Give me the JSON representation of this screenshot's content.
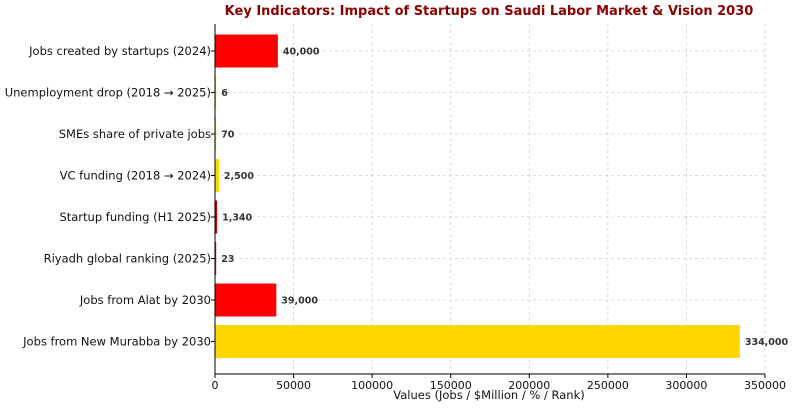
{
  "chart_data": {
    "type": "bar",
    "orientation": "horizontal",
    "title": "Key Indicators: Impact of Startups on Saudi Labor Market & Vision 2030",
    "xlabel": "Values (Jobs / $Million / % / Rank)",
    "ylabel": "",
    "xlim": [
      0,
      350000
    ],
    "xticks": [
      0,
      50000,
      100000,
      150000,
      200000,
      250000,
      300000,
      350000
    ],
    "xtick_labels": [
      "0",
      "50000",
      "100000",
      "150000",
      "200000",
      "250000",
      "300000",
      "350000"
    ],
    "grid": true,
    "categories": [
      "Jobs created by startups (2024)",
      "Unemployment drop (2018 → 2025)",
      "SMEs share of private jobs",
      "VC funding (2018 → 2024)",
      "Startup funding (H1 2025)",
      "Riyadh global ranking (2025)",
      "Jobs from Alat by 2030",
      "Jobs from New Murabba by 2030"
    ],
    "values": [
      40000,
      6,
      70,
      2500,
      1340,
      23,
      39000,
      334000
    ],
    "value_labels": [
      "40,000",
      "6",
      "70",
      "2,500",
      "1,340",
      "23",
      "39,000",
      "334,000"
    ],
    "colors": [
      "#ff0000",
      "#ffd700",
      "#ffd700",
      "#ffd700",
      "#cc0000",
      "#ff0000",
      "#ff0000",
      "#ffd700"
    ]
  }
}
